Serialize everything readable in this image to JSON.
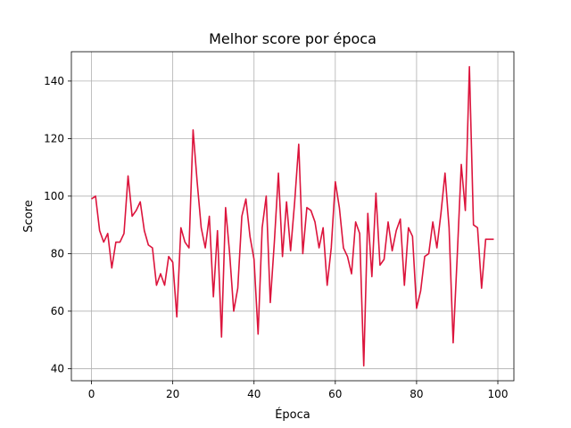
{
  "chart_data": {
    "type": "line",
    "title": "Melhor score por época",
    "xlabel": "Época",
    "ylabel": "Score",
    "xlim": [
      -4.95,
      103.95
    ],
    "ylim": [
      35.8,
      150.2
    ],
    "xticks": [
      0,
      20,
      40,
      60,
      80,
      100
    ],
    "yticks": [
      40,
      60,
      80,
      100,
      120,
      140
    ],
    "grid": true,
    "color": "#dc143c",
    "x": [
      0,
      1,
      2,
      3,
      4,
      5,
      6,
      7,
      8,
      9,
      10,
      11,
      12,
      13,
      14,
      15,
      16,
      17,
      18,
      19,
      20,
      21,
      22,
      23,
      24,
      25,
      26,
      27,
      28,
      29,
      30,
      31,
      32,
      33,
      34,
      35,
      36,
      37,
      38,
      39,
      40,
      41,
      42,
      43,
      44,
      45,
      46,
      47,
      48,
      49,
      50,
      51,
      52,
      53,
      54,
      55,
      56,
      57,
      58,
      59,
      60,
      61,
      62,
      63,
      64,
      65,
      66,
      67,
      68,
      69,
      70,
      71,
      72,
      73,
      74,
      75,
      76,
      77,
      78,
      79,
      80,
      81,
      82,
      83,
      84,
      85,
      86,
      87,
      88,
      89,
      90,
      91,
      92,
      93,
      94,
      95,
      96,
      97,
      98,
      99
    ],
    "values": [
      99,
      100,
      88,
      84,
      87,
      75,
      84,
      84,
      87,
      107,
      93,
      95,
      98,
      88,
      83,
      82,
      69,
      73,
      69,
      79,
      77,
      58,
      89,
      84,
      82,
      123,
      105,
      89,
      82,
      93,
      65,
      88,
      51,
      96,
      80,
      60,
      68,
      93,
      99,
      86,
      78,
      52,
      89,
      100,
      63,
      84,
      108,
      79,
      98,
      81,
      98,
      118,
      80,
      96,
      95,
      91,
      82,
      89,
      69,
      82,
      105,
      96,
      82,
      79,
      73,
      91,
      87,
      41,
      94,
      72,
      101,
      76,
      78,
      91,
      81,
      88,
      92,
      69,
      89,
      86,
      61,
      67,
      79,
      80,
      91,
      82,
      94,
      108,
      89,
      49,
      79,
      111,
      95,
      145,
      90,
      89,
      68,
      85,
      85,
      85
    ]
  }
}
